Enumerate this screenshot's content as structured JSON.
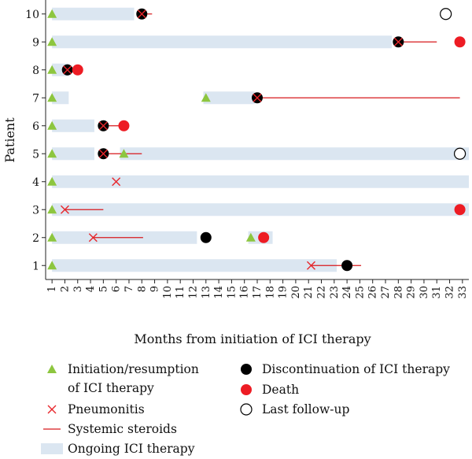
{
  "chart_data": {
    "type": "swimmer",
    "xlabel": "Months from initiation of ICI therapy",
    "ylabel": "Patient",
    "xlim": [
      0.5,
      33.5
    ],
    "ylim": [
      0.5,
      10.5
    ],
    "x_ticks": [
      "1",
      "2",
      "3",
      "4",
      "5",
      "6",
      "7",
      "8",
      "9",
      "10",
      "11",
      "12",
      "13",
      "14",
      "15",
      "16",
      "17",
      "18",
      "19",
      "20",
      "21",
      "22",
      "23",
      "24",
      "25",
      "26",
      "27",
      "28",
      "29",
      "30",
      "31",
      "32",
      "33"
    ],
    "y_ticks": [
      "1",
      "2",
      "3",
      "4",
      "5",
      "6",
      "7",
      "8",
      "9",
      "10"
    ],
    "colors": {
      "ongoing": "#dbe6f1",
      "initiation": "#8dc63f",
      "pneumonitis": "#e8262b",
      "steroids": "#d7191c",
      "discontinuation": "#000000",
      "death": "#ed1c24"
    },
    "patients": [
      {
        "id": 1,
        "ongoing": [
          [
            1,
            23.2
          ]
        ],
        "initiation": [
          1
        ],
        "pneumonitis": [
          21.2
        ],
        "steroids": [
          [
            21.2,
            25.1
          ]
        ],
        "discontinuation": [
          24
        ],
        "death": [],
        "last_followup": []
      },
      {
        "id": 2,
        "ongoing": [
          [
            1,
            12.3
          ],
          [
            16.3,
            18.2
          ]
        ],
        "initiation": [
          1,
          16.5
        ],
        "pneumonitis": [
          4.2
        ],
        "steroids": [
          [
            4.2,
            8.1
          ]
        ],
        "discontinuation": [
          13
        ],
        "death": [
          17.5
        ],
        "last_followup": []
      },
      {
        "id": 3,
        "ongoing": [
          [
            1,
            33.5
          ]
        ],
        "initiation": [
          1
        ],
        "pneumonitis": [
          2
        ],
        "steroids": [
          [
            2,
            5
          ]
        ],
        "discontinuation": [],
        "death": [
          32.8
        ],
        "last_followup": []
      },
      {
        "id": 4,
        "ongoing": [
          [
            1,
            33.5
          ]
        ],
        "initiation": [
          1
        ],
        "pneumonitis": [
          6
        ],
        "steroids": [],
        "discontinuation": [],
        "death": [],
        "last_followup": []
      },
      {
        "id": 5,
        "ongoing": [
          [
            1,
            4.3
          ],
          [
            6.3,
            33.5
          ]
        ],
        "initiation": [
          1,
          6.6
        ],
        "pneumonitis": [
          5
        ],
        "steroids": [
          [
            5,
            8
          ]
        ],
        "discontinuation": [
          5
        ],
        "death": [],
        "last_followup": [
          32.8
        ]
      },
      {
        "id": 6,
        "ongoing": [
          [
            1,
            4.3
          ]
        ],
        "initiation": [
          1
        ],
        "pneumonitis": [
          5
        ],
        "steroids": [
          [
            5,
            6.6
          ]
        ],
        "discontinuation": [
          5
        ],
        "death": [
          6.6
        ],
        "last_followup": []
      },
      {
        "id": 7,
        "ongoing": [
          [
            1,
            2.3
          ],
          [
            12.8,
            16.8
          ]
        ],
        "initiation": [
          1,
          13
        ],
        "pneumonitis": [
          17
        ],
        "steroids": [
          [
            17,
            32.8
          ]
        ],
        "discontinuation": [
          17
        ],
        "death": [],
        "last_followup": []
      },
      {
        "id": 8,
        "ongoing": [
          [
            1,
            2.3
          ]
        ],
        "initiation": [
          1
        ],
        "pneumonitis": [
          2.2
        ],
        "steroids": [],
        "discontinuation": [
          2.2
        ],
        "death": [
          3
        ],
        "last_followup": []
      },
      {
        "id": 9,
        "ongoing": [
          [
            1,
            27.5
          ]
        ],
        "initiation": [
          1
        ],
        "pneumonitis": [
          28
        ],
        "steroids": [
          [
            28,
            31
          ]
        ],
        "discontinuation": [
          28
        ],
        "death": [
          32.8
        ],
        "last_followup": []
      },
      {
        "id": 10,
        "ongoing": [
          [
            1,
            7.4
          ]
        ],
        "initiation": [
          1
        ],
        "pneumonitis": [
          8
        ],
        "steroids": [
          [
            8,
            8.8
          ]
        ],
        "discontinuation": [
          8
        ],
        "death": [],
        "last_followup": [
          31.7
        ]
      }
    ],
    "legend": {
      "placement": "bottom",
      "items": [
        {
          "key": "initiation",
          "lines": [
            "Initiation/resumption",
            "of ICI therapy"
          ]
        },
        {
          "key": "pneumonitis",
          "lines": [
            "Pneumonitis"
          ]
        },
        {
          "key": "steroids",
          "lines": [
            "Systemic steroids"
          ]
        },
        {
          "key": "ongoing",
          "lines": [
            "Ongoing ICI therapy"
          ]
        },
        {
          "key": "discontinuation",
          "lines": [
            "Discontinuation of ICI therapy"
          ]
        },
        {
          "key": "death",
          "lines": [
            "Death"
          ]
        },
        {
          "key": "last_followup",
          "lines": [
            "Last follow-up"
          ]
        }
      ]
    }
  }
}
